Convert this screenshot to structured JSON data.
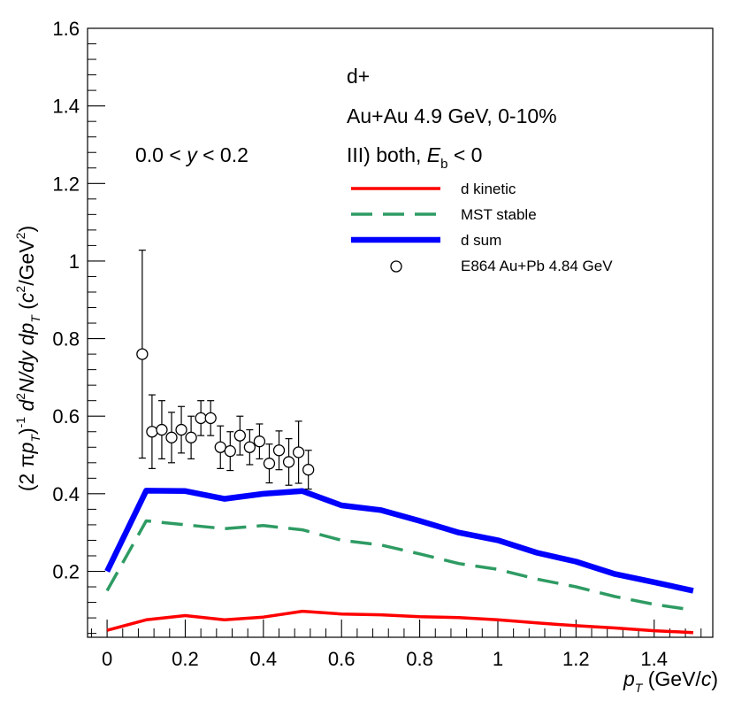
{
  "chart_data": {
    "type": "line",
    "xlim": [
      -0.05,
      1.55
    ],
    "ylim": [
      0.03,
      1.6
    ],
    "x_ticks": [
      "0",
      "0.2",
      "0.4",
      "0.6",
      "0.8",
      "1",
      "1.2",
      "1.4"
    ],
    "x_tick_values": [
      0,
      0.2,
      0.4,
      0.6,
      0.8,
      1.0,
      1.2,
      1.4
    ],
    "y_ticks": [
      "0.2",
      "0.4",
      "0.6",
      "0.8",
      "1",
      "1.2",
      "1.4",
      "1.6"
    ],
    "y_tick_values": [
      0.2,
      0.4,
      0.6,
      0.8,
      1.0,
      1.2,
      1.4,
      1.6
    ],
    "xlabel": {
      "p": "p",
      "sub": "T",
      "rest": " (GeV/",
      "c": "c",
      "close": ")"
    },
    "ylabel": {
      "a": "(2 ",
      "pi": "π",
      "p": "p",
      "sub1": "T",
      "b": ")",
      "sup1": "-1",
      "c": " ",
      "d": "d",
      "sup2": "2",
      "e": "N/dy dp",
      "sub2": "T",
      "f": " (",
      "g": "c",
      "sup3": "2",
      "h": "/GeV",
      "sup4": "2",
      "i": ")"
    },
    "annotations": {
      "particle": "d+",
      "system": "Au+Au 4.9 GeV, 0-10%",
      "rapidity_pre": "0.0 < ",
      "rapidity_var": "y",
      "rapidity_post": " < 0.2",
      "scenario_pre": "III) both, ",
      "scenario_var": "E",
      "scenario_sub": "b",
      "scenario_post": " < 0"
    },
    "legend_position": "top-right",
    "series": [
      {
        "name": "d kinetic",
        "color": "#ff0000",
        "style": "solid",
        "x": [
          0,
          0.1,
          0.2,
          0.3,
          0.4,
          0.5,
          0.6,
          0.7,
          0.8,
          0.9,
          1.0,
          1.1,
          1.2,
          1.3,
          1.4,
          1.5
        ],
        "y": [
          0.048,
          0.075,
          0.086,
          0.075,
          0.082,
          0.097,
          0.09,
          0.088,
          0.083,
          0.081,
          0.075,
          0.067,
          0.06,
          0.054,
          0.047,
          0.042
        ]
      },
      {
        "name": "MST stable",
        "color": "#2e9b63",
        "style": "dashed",
        "x": [
          0,
          0.1,
          0.2,
          0.3,
          0.4,
          0.5,
          0.6,
          0.7,
          0.8,
          0.9,
          1.0,
          1.1,
          1.2,
          1.3,
          1.4,
          1.5
        ],
        "y": [
          0.15,
          0.33,
          0.32,
          0.31,
          0.318,
          0.307,
          0.28,
          0.268,
          0.245,
          0.22,
          0.205,
          0.18,
          0.16,
          0.135,
          0.115,
          0.1
        ]
      },
      {
        "name": "d sum",
        "color": "#0000ff",
        "style": "solid-thick",
        "x": [
          0,
          0.1,
          0.2,
          0.3,
          0.4,
          0.5,
          0.6,
          0.7,
          0.8,
          0.9,
          1.0,
          1.1,
          1.2,
          1.3,
          1.4,
          1.5
        ],
        "y": [
          0.2,
          0.408,
          0.407,
          0.387,
          0.4,
          0.407,
          0.37,
          0.358,
          0.33,
          0.3,
          0.28,
          0.248,
          0.225,
          0.193,
          0.172,
          0.15
        ]
      },
      {
        "name": "E864 Au+Pb 4.84 GeV",
        "color": "#000000",
        "style": "open-circle",
        "x": [
          0.09,
          0.115,
          0.14,
          0.165,
          0.19,
          0.215,
          0.24,
          0.265,
          0.29,
          0.315,
          0.34,
          0.365,
          0.39,
          0.415,
          0.44,
          0.465,
          0.49,
          0.515
        ],
        "y": [
          0.76,
          0.56,
          0.565,
          0.545,
          0.565,
          0.545,
          0.595,
          0.595,
          0.52,
          0.51,
          0.55,
          0.52,
          0.535,
          0.478,
          0.512,
          0.482,
          0.507,
          0.462
        ],
        "err": [
          0.268,
          0.095,
          0.075,
          0.065,
          0.06,
          0.055,
          0.045,
          0.045,
          0.055,
          0.05,
          0.05,
          0.045,
          0.045,
          0.05,
          0.05,
          0.06,
          0.08,
          0.05
        ]
      }
    ]
  }
}
